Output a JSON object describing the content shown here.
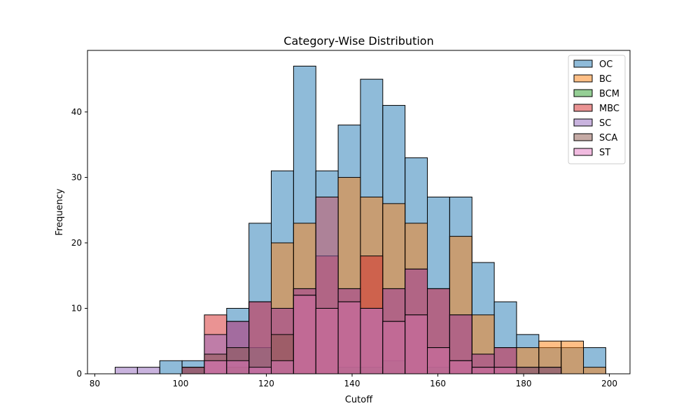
{
  "chart_data": {
    "type": "bar",
    "subtype": "overlapping histogram",
    "title": "Category-Wise Distribution",
    "xlabel": "Cutoff",
    "ylabel": "Frequency",
    "xlim": [
      78.3,
      204.8
    ],
    "ylim": [
      0,
      49.4
    ],
    "xticks": [
      80,
      100,
      120,
      140,
      160,
      180,
      200
    ],
    "yticks": [
      0,
      10,
      20,
      30,
      40
    ],
    "bin_start": 84.75,
    "bin_width": 5.2,
    "legend_position": "upper right",
    "series": [
      {
        "name": "OC",
        "color": "#1f77b4",
        "counts": [
          0,
          0,
          2,
          2,
          0,
          10,
          23,
          31,
          47,
          31,
          38,
          45,
          41,
          33,
          27,
          27,
          17,
          11,
          6,
          4,
          4,
          4
        ]
      },
      {
        "name": "BC",
        "color": "#ff7f0e",
        "counts": [
          0,
          0,
          0,
          0,
          0,
          0,
          11,
          20,
          23,
          27,
          30,
          27,
          26,
          23,
          13,
          21,
          9,
          4,
          4,
          5,
          5,
          1
        ]
      },
      {
        "name": "BCM",
        "color": "#2ca02c",
        "counts": [
          0,
          0,
          0,
          0,
          0,
          1,
          4,
          2,
          0,
          0,
          1,
          1,
          2,
          0,
          1,
          0,
          0,
          0,
          0,
          0,
          0,
          0
        ]
      },
      {
        "name": "MBC",
        "color": "#d62728",
        "counts": [
          0,
          0,
          0,
          1,
          9,
          8,
          11,
          10,
          13,
          18,
          13,
          18,
          13,
          16,
          13,
          9,
          3,
          4,
          0,
          0,
          0,
          0
        ]
      },
      {
        "name": "SC",
        "color": "#9467bd",
        "counts": [
          1,
          1,
          0,
          1,
          6,
          8,
          11,
          10,
          13,
          27,
          13,
          10,
          13,
          16,
          13,
          9,
          3,
          4,
          1,
          1,
          0,
          0
        ]
      },
      {
        "name": "SCA",
        "color": "#8c564b",
        "counts": [
          0,
          0,
          0,
          1,
          3,
          4,
          0,
          6,
          12,
          10,
          11,
          10,
          8,
          9,
          4,
          2,
          1,
          1,
          1,
          1,
          0,
          0
        ]
      },
      {
        "name": "ST",
        "color": "#e377c2",
        "counts": [
          0,
          0,
          0,
          0,
          2,
          2,
          1,
          2,
          12,
          10,
          11,
          10,
          8,
          9,
          4,
          2,
          1,
          1,
          0,
          0,
          0,
          0
        ]
      }
    ]
  }
}
